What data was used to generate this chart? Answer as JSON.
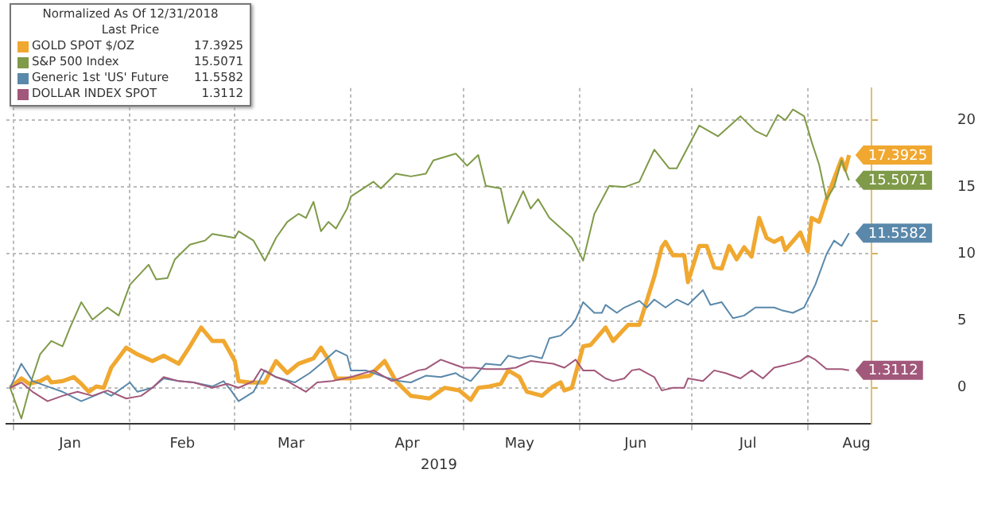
{
  "chart_data": {
    "type": "line",
    "legend_title": "Normalized As Of 12/31/2018\nLast Price",
    "xlabel": "2019",
    "legend": "top left",
    "grid": true,
    "marker": "none",
    "line_style": "solid",
    "xlim": [
      "2018-12-30",
      "2019-08-18"
    ],
    "xticks": [
      {
        "value": "2019-01-01",
        "label": null
      },
      {
        "value": "2019-01-16",
        "label": "Jan"
      },
      {
        "value": "2019-02-01",
        "label": null
      },
      {
        "value": "2019-02-15",
        "label": "Feb"
      },
      {
        "value": "2019-03-01",
        "label": null
      },
      {
        "value": "2019-03-16",
        "label": "Mar"
      },
      {
        "value": "2019-04-01",
        "label": null
      },
      {
        "value": "2019-04-16",
        "label": "Apr"
      },
      {
        "value": "2019-05-01",
        "label": null
      },
      {
        "value": "2019-05-16",
        "label": "May"
      },
      {
        "value": "2019-06-01",
        "label": null
      },
      {
        "value": "2019-06-16",
        "label": "Jun"
      },
      {
        "value": "2019-07-01",
        "label": null
      },
      {
        "value": "2019-07-16",
        "label": "Jul"
      },
      {
        "value": "2019-08-01",
        "label": null
      },
      {
        "value": "2019-08-14",
        "label": "Aug"
      }
    ],
    "ylim": [
      -2.7,
      22.4
    ],
    "yticks": [
      0,
      5,
      10,
      15,
      20
    ],
    "series": [
      {
        "name": "GOLD SPOT $/OZ",
        "color": "#f0a830",
        "x": [
          "2018-12-31",
          "2019-01-03",
          "2019-01-05",
          "2019-01-08",
          "2019-01-10",
          "2019-01-11",
          "2019-01-14",
          "2019-01-17",
          "2019-01-19",
          "2019-01-21",
          "2019-01-23",
          "2019-01-25",
          "2019-01-27",
          "2019-01-31",
          "2019-02-03",
          "2019-02-07",
          "2019-02-10",
          "2019-02-14",
          "2019-02-17",
          "2019-02-20",
          "2019-02-23",
          "2019-02-26",
          "2019-03-01",
          "2019-03-02",
          "2019-03-05",
          "2019-03-09",
          "2019-03-12",
          "2019-03-15",
          "2019-03-18",
          "2019-03-22",
          "2019-03-24",
          "2019-03-26",
          "2019-03-28",
          "2019-04-01",
          "2019-04-06",
          "2019-04-10",
          "2019-04-13",
          "2019-04-17",
          "2019-04-22",
          "2019-04-26",
          "2019-04-30",
          "2019-05-03",
          "2019-05-05",
          "2019-05-08",
          "2019-05-11",
          "2019-05-13",
          "2019-05-16",
          "2019-05-18",
          "2019-05-22",
          "2019-05-25",
          "2019-05-27",
          "2019-05-28",
          "2019-05-30",
          "2019-06-02",
          "2019-06-04",
          "2019-06-08",
          "2019-06-10",
          "2019-06-14",
          "2019-06-17",
          "2019-06-18",
          "2019-06-21",
          "2019-06-23",
          "2019-06-24",
          "2019-06-26",
          "2019-06-29",
          "2019-06-30",
          "2019-07-03",
          "2019-07-05",
          "2019-07-07",
          "2019-07-09",
          "2019-07-11",
          "2019-07-13",
          "2019-07-15",
          "2019-07-17",
          "2019-07-19",
          "2019-07-21",
          "2019-07-23",
          "2019-07-25",
          "2019-07-26",
          "2019-07-30",
          "2019-08-01",
          "2019-08-02",
          "2019-08-04",
          "2019-08-06",
          "2019-08-10",
          "2019-08-11",
          "2019-08-12"
        ],
        "values": [
          0,
          0.7,
          0.3,
          0.5,
          0.8,
          0.4,
          0.5,
          0.8,
          0.3,
          -0.3,
          0.1,
          0,
          1.5,
          3.0,
          2.5,
          2.0,
          2.4,
          1.8,
          3.1,
          4.5,
          3.5,
          3.5,
          2.0,
          0.5,
          0.4,
          0.4,
          2.0,
          1.1,
          1.8,
          2.2,
          3.0,
          2.1,
          0.7,
          0.7,
          0.9,
          2.0,
          0.5,
          -0.6,
          -0.8,
          0,
          -0.2,
          -0.9,
          0,
          0.1,
          0.3,
          1.3,
          0.8,
          -0.3,
          -0.6,
          0.1,
          0.4,
          -0.2,
          0,
          3.1,
          3.2,
          4.5,
          3.5,
          4.7,
          4.7,
          5.6,
          8.3,
          10.5,
          10.9,
          9.9,
          9.9,
          7.9,
          10.6,
          10.6,
          9.0,
          8.9,
          10.6,
          9.6,
          10.5,
          9.8,
          12.7,
          11.2,
          10.9,
          11.2,
          10.3,
          11.6,
          10.2,
          12.7,
          12.4,
          14.1,
          17.1,
          16.3,
          17.3925
        ],
        "value_labels": [
          null,
          null,
          null,
          null,
          null,
          null,
          null,
          null,
          null,
          null,
          null,
          null,
          null,
          null,
          null,
          null,
          null,
          null,
          null,
          null,
          null,
          null,
          null,
          null,
          null,
          null,
          null,
          null,
          null,
          null,
          null,
          null,
          null,
          null,
          null,
          null,
          null,
          null,
          null,
          null,
          null,
          null,
          null,
          null,
          null,
          null,
          null,
          null,
          null,
          null,
          null,
          null,
          null,
          null,
          null,
          null,
          null,
          null,
          null,
          null,
          null,
          null,
          null,
          null,
          null,
          null,
          null,
          null,
          null,
          null,
          null,
          null,
          null,
          null,
          null,
          null,
          null,
          null,
          null,
          null,
          null,
          null,
          null,
          null,
          null,
          null,
          "17.3925"
        ]
      },
      {
        "name": "S&P 500 Index",
        "color": "#7f9a48",
        "x": [
          "2018-12-31",
          "2019-01-03",
          "2019-01-06",
          "2019-01-08",
          "2019-01-11",
          "2019-01-14",
          "2019-01-16",
          "2019-01-19",
          "2019-01-22",
          "2019-01-26",
          "2019-01-29",
          "2019-02-01",
          "2019-02-06",
          "2019-02-08",
          "2019-02-11",
          "2019-02-13",
          "2019-02-17",
          "2019-02-21",
          "2019-02-23",
          "2019-03-01",
          "2019-03-02",
          "2019-03-06",
          "2019-03-09",
          "2019-03-12",
          "2019-03-15",
          "2019-03-18",
          "2019-03-20",
          "2019-03-22",
          "2019-03-24",
          "2019-03-26",
          "2019-03-28",
          "2019-03-31",
          "2019-04-01",
          "2019-04-07",
          "2019-04-09",
          "2019-04-13",
          "2019-04-17",
          "2019-04-21",
          "2019-04-23",
          "2019-04-29",
          "2019-05-02",
          "2019-05-05",
          "2019-05-07",
          "2019-05-11",
          "2019-05-13",
          "2019-05-17",
          "2019-05-19",
          "2019-05-21",
          "2019-05-24",
          "2019-05-30",
          "2019-06-02",
          "2019-06-05",
          "2019-06-09",
          "2019-06-13",
          "2019-06-17",
          "2019-06-21",
          "2019-06-25",
          "2019-06-27",
          "2019-07-03",
          "2019-07-08",
          "2019-07-14",
          "2019-07-18",
          "2019-07-21",
          "2019-07-24",
          "2019-07-26",
          "2019-07-28",
          "2019-07-31",
          "2019-08-02",
          "2019-08-04",
          "2019-08-06",
          "2019-08-08",
          "2019-08-10",
          "2019-08-12"
        ],
        "values": [
          0,
          -2.3,
          0.8,
          2.5,
          3.5,
          3.1,
          4.5,
          6.4,
          5.1,
          6.0,
          5.4,
          7.7,
          9.2,
          8.1,
          8.2,
          9.6,
          10.7,
          11.0,
          11.5,
          11.2,
          11.7,
          11.0,
          9.5,
          11.2,
          12.4,
          13.0,
          12.7,
          13.9,
          11.7,
          12.4,
          11.9,
          13.4,
          14.3,
          15.4,
          14.9,
          16.0,
          15.8,
          16.0,
          17.0,
          17.5,
          16.6,
          17.4,
          15.1,
          14.9,
          12.3,
          14.7,
          13.4,
          14.1,
          12.7,
          11.2,
          9.5,
          13.0,
          15.1,
          15.0,
          15.4,
          17.8,
          16.4,
          16.4,
          19.6,
          18.8,
          20.3,
          19.2,
          18.8,
          20.4,
          20.0,
          20.8,
          20.3,
          18.4,
          16.7,
          14.1,
          15.0,
          17.0,
          15.5071
        ],
        "value_labels": [
          null,
          null,
          null,
          null,
          null,
          null,
          null,
          null,
          null,
          null,
          null,
          null,
          null,
          null,
          null,
          null,
          null,
          null,
          null,
          null,
          null,
          null,
          null,
          null,
          null,
          null,
          null,
          null,
          null,
          null,
          null,
          null,
          null,
          null,
          null,
          null,
          null,
          null,
          null,
          null,
          null,
          null,
          null,
          null,
          null,
          null,
          null,
          null,
          null,
          null,
          null,
          null,
          null,
          null,
          null,
          null,
          null,
          null,
          null,
          null,
          null,
          null,
          null,
          null,
          null,
          null,
          null,
          null,
          null,
          null,
          null,
          null,
          "15.5071"
        ]
      },
      {
        "name": "Generic 1st 'US' Future",
        "color": "#5a88aa",
        "x": [
          "2018-12-31",
          "2019-01-03",
          "2019-01-06",
          "2019-01-10",
          "2019-01-14",
          "2019-01-19",
          "2019-01-25",
          "2019-01-27",
          "2019-02-01",
          "2019-02-03",
          "2019-02-07",
          "2019-02-10",
          "2019-02-14",
          "2019-02-18",
          "2019-02-23",
          "2019-02-26",
          "2019-02-28",
          "2019-03-02",
          "2019-03-06",
          "2019-03-09",
          "2019-03-12",
          "2019-03-17",
          "2019-03-21",
          "2019-03-24",
          "2019-03-28",
          "2019-03-31",
          "2019-04-01",
          "2019-04-05",
          "2019-04-10",
          "2019-04-14",
          "2019-04-17",
          "2019-04-21",
          "2019-04-25",
          "2019-04-29",
          "2019-04-30",
          "2019-05-03",
          "2019-05-07",
          "2019-05-11",
          "2019-05-13",
          "2019-05-16",
          "2019-05-19",
          "2019-05-22",
          "2019-05-24",
          "2019-05-27",
          "2019-05-30",
          "2019-05-31",
          "2019-06-02",
          "2019-06-05",
          "2019-06-07",
          "2019-06-08",
          "2019-06-11",
          "2019-06-13",
          "2019-06-17",
          "2019-06-19",
          "2019-06-21",
          "2019-06-24",
          "2019-06-27",
          "2019-06-30",
          "2019-07-04",
          "2019-07-06",
          "2019-07-09",
          "2019-07-12",
          "2019-07-15",
          "2019-07-18",
          "2019-07-20",
          "2019-07-23",
          "2019-07-25",
          "2019-07-28",
          "2019-07-31",
          "2019-08-03",
          "2019-08-06",
          "2019-08-08",
          "2019-08-10",
          "2019-08-12"
        ],
        "values": [
          0,
          1.8,
          0.5,
          0.1,
          -0.3,
          -1.0,
          -0.3,
          -0.6,
          0.4,
          -0.3,
          0,
          0.7,
          0.5,
          0.4,
          0.1,
          0.5,
          -0.2,
          -1.0,
          -0.3,
          1.3,
          0.8,
          0.4,
          1.1,
          1.8,
          2.8,
          2.4,
          1.3,
          1.3,
          0.8,
          0.5,
          0.4,
          0.9,
          0.8,
          1.1,
          0.9,
          0.5,
          1.8,
          1.7,
          2.4,
          2.2,
          2.4,
          2.2,
          3.7,
          3.9,
          4.7,
          5.1,
          6.4,
          5.6,
          5.6,
          6.2,
          5.6,
          6.0,
          6.5,
          6.0,
          6.6,
          6.0,
          6.6,
          6.2,
          7.3,
          6.2,
          6.4,
          5.2,
          5.4,
          6.0,
          6.0,
          6.0,
          5.8,
          5.6,
          6.0,
          7.7,
          10.0,
          11.0,
          10.6,
          11.5582
        ],
        "value_labels": [
          null,
          null,
          null,
          null,
          null,
          null,
          null,
          null,
          null,
          null,
          null,
          null,
          null,
          null,
          null,
          null,
          null,
          null,
          null,
          null,
          null,
          null,
          null,
          null,
          null,
          null,
          null,
          null,
          null,
          null,
          null,
          null,
          null,
          null,
          null,
          null,
          null,
          null,
          null,
          null,
          null,
          null,
          null,
          null,
          null,
          null,
          null,
          null,
          null,
          null,
          null,
          null,
          null,
          null,
          null,
          null,
          null,
          null,
          null,
          null,
          null,
          null,
          null,
          null,
          null,
          null,
          null,
          null,
          null,
          null,
          null,
          null,
          null,
          "11.5582"
        ]
      },
      {
        "name": "DOLLAR INDEX SPOT",
        "color": "#a2587a",
        "x": [
          "2018-12-31",
          "2019-01-03",
          "2019-01-06",
          "2019-01-10",
          "2019-01-14",
          "2019-01-18",
          "2019-01-22",
          "2019-01-26",
          "2019-01-31",
          "2019-02-04",
          "2019-02-07",
          "2019-02-10",
          "2019-02-14",
          "2019-02-18",
          "2019-02-23",
          "2019-02-27",
          "2019-03-02",
          "2019-03-06",
          "2019-03-08",
          "2019-03-12",
          "2019-03-15",
          "2019-03-20",
          "2019-03-23",
          "2019-03-27",
          "2019-04-01",
          "2019-04-07",
          "2019-04-12",
          "2019-04-14",
          "2019-04-19",
          "2019-04-21",
          "2019-04-25",
          "2019-04-28",
          "2019-05-01",
          "2019-05-04",
          "2019-05-07",
          "2019-05-12",
          "2019-05-15",
          "2019-05-19",
          "2019-05-25",
          "2019-05-28",
          "2019-05-31",
          "2019-06-02",
          "2019-06-05",
          "2019-06-08",
          "2019-06-10",
          "2019-06-13",
          "2019-06-15",
          "2019-06-17",
          "2019-06-21",
          "2019-06-23",
          "2019-06-26",
          "2019-06-29",
          "2019-06-30",
          "2019-07-04",
          "2019-07-07",
          "2019-07-10",
          "2019-07-14",
          "2019-07-17",
          "2019-07-20",
          "2019-07-23",
          "2019-07-26",
          "2019-07-30",
          "2019-08-01",
          "2019-08-03",
          "2019-08-06",
          "2019-08-08",
          "2019-08-10",
          "2019-08-12"
        ],
        "values": [
          0,
          0.4,
          -0.3,
          -1.0,
          -0.6,
          -0.3,
          -0.6,
          -0.2,
          -0.8,
          -0.6,
          0,
          0.8,
          0.5,
          0.4,
          0,
          0.3,
          0,
          0.5,
          1.4,
          0.8,
          0.5,
          -0.3,
          0.4,
          0.5,
          0.8,
          1.3,
          0.5,
          0.7,
          1.3,
          1.4,
          2.1,
          1.8,
          1.5,
          1.5,
          1.4,
          1.4,
          1.5,
          2.0,
          1.8,
          1.5,
          2.1,
          1.3,
          1.3,
          0.7,
          0.5,
          0.7,
          1.3,
          1.4,
          0.8,
          -0.2,
          0,
          0,
          0.7,
          0.5,
          1.3,
          1.1,
          0.7,
          1.3,
          0.7,
          1.5,
          1.7,
          2.0,
          2.4,
          2.1,
          1.4,
          1.4,
          1.4,
          1.3112
        ],
        "value_labels": [
          null,
          null,
          null,
          null,
          null,
          null,
          null,
          null,
          null,
          null,
          null,
          null,
          null,
          null,
          null,
          null,
          null,
          null,
          null,
          null,
          null,
          null,
          null,
          null,
          null,
          null,
          null,
          null,
          null,
          null,
          null,
          null,
          null,
          null,
          null,
          null,
          null,
          null,
          null,
          null,
          null,
          null,
          null,
          null,
          null,
          null,
          null,
          null,
          null,
          null,
          null,
          null,
          null,
          null,
          null,
          null,
          null,
          null,
          null,
          null,
          null,
          null,
          null,
          null,
          null,
          null,
          null,
          "1.3112"
        ]
      }
    ]
  }
}
